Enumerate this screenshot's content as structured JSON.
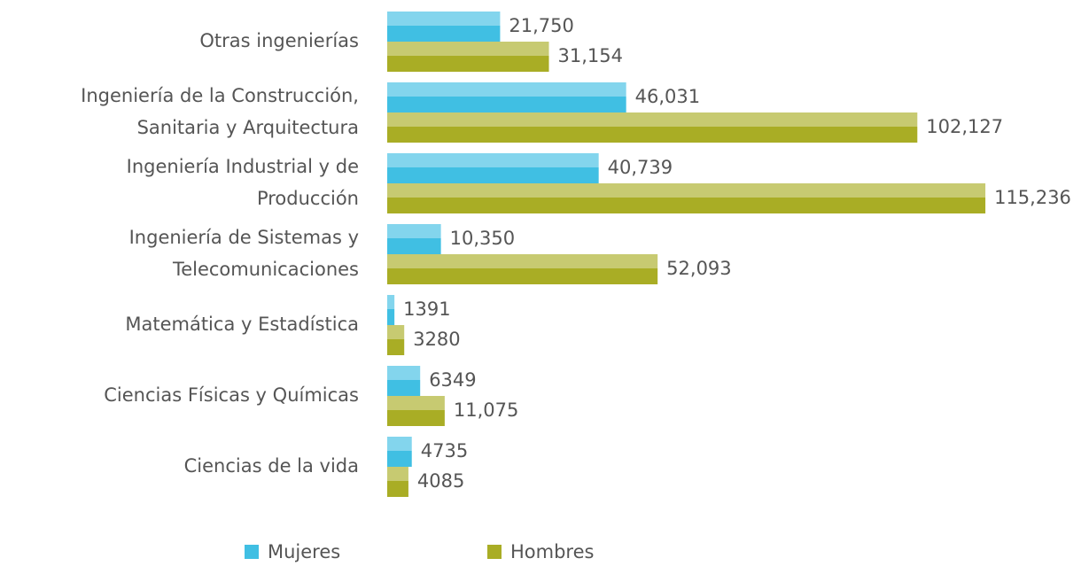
{
  "chart_data": {
    "type": "barh",
    "categories": [
      "Otras ingenierías",
      "Ingeniería de la Construcción,\nSanitaria y Arquitectura",
      "Ingeniería Industrial y de\nProducción",
      "Ingeniería de Sistemas y\nTelecomunicaciones",
      "Matemática y Estadística",
      "Ciencias Físicas y Químicas",
      "Ciencias de la vida"
    ],
    "series": [
      {
        "name": "Mujeres",
        "color": "#40bfe3",
        "values": [
          21750,
          46031,
          40739,
          10350,
          1391,
          6349,
          4735
        ],
        "value_labels": [
          "21,750",
          "46,031",
          "40,739",
          "10,350",
          "1391",
          "6349",
          "4735"
        ]
      },
      {
        "name": "Hombres",
        "color": "#a9ad25",
        "values": [
          31154,
          102127,
          115236,
          52093,
          3280,
          11075,
          4085
        ],
        "value_labels": [
          "31,154",
          "102,127",
          "115,236",
          "52,093",
          "3280",
          "11,075",
          "4085"
        ]
      }
    ],
    "xlim": [
      0,
      120000
    ],
    "legend": "bottom"
  }
}
